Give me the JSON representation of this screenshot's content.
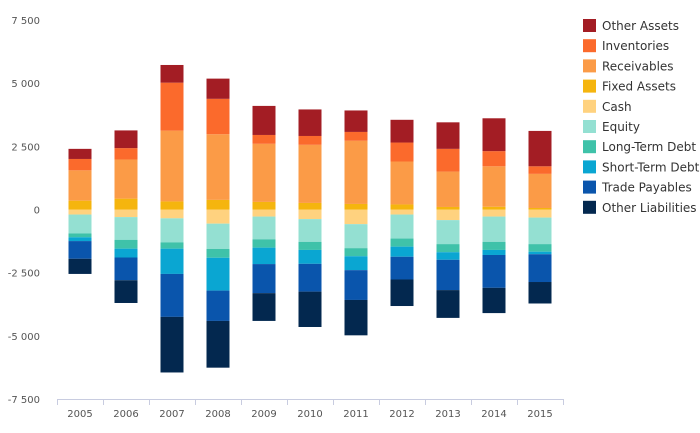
{
  "chart_data": {
    "type": "bar",
    "stacked": true,
    "title": "",
    "xlabel": "",
    "ylabel": "",
    "categories": [
      "2005",
      "2006",
      "2007",
      "2008",
      "2009",
      "2010",
      "2011",
      "2012",
      "2013",
      "2014",
      "2015"
    ],
    "ylim": [
      -7500,
      7500
    ],
    "yticks": [
      -7500,
      -5000,
      -2500,
      0,
      2500,
      5000,
      7500
    ],
    "ytick_labels": [
      "-7 500",
      "-5 000",
      "-2 500",
      "0",
      "2 500",
      "5 000",
      "7 500"
    ],
    "grid": false,
    "legend_position": "right",
    "positive_series": [
      {
        "name": "Fixed Assets",
        "color": "#f5b50e",
        "values": [
          350,
          430,
          320,
          380,
          300,
          260,
          220,
          200,
          100,
          110,
          60
        ]
      },
      {
        "name": "Receivables",
        "color": "#fb9b47",
        "values": [
          1200,
          1550,
          2800,
          2600,
          2300,
          2300,
          2500,
          1700,
          1400,
          1600,
          1350
        ]
      },
      {
        "name": "Inventories",
        "color": "#fb6a2c",
        "values": [
          450,
          450,
          1900,
          1400,
          350,
          350,
          350,
          750,
          900,
          600,
          300
        ]
      },
      {
        "name": "Other Assets",
        "color": "#a31d24",
        "values": [
          400,
          700,
          700,
          800,
          1150,
          1050,
          850,
          900,
          1050,
          1300,
          1400
        ]
      }
    ],
    "negative_series": [
      {
        "name": "Cash",
        "color": "#ffd27f",
        "values": [
          200,
          300,
          350,
          560,
          280,
          380,
          580,
          200,
          420,
          280,
          320
        ]
      },
      {
        "name": "Equity",
        "color": "#94e0d2",
        "values": [
          -750,
          -900,
          -950,
          -1000,
          -900,
          -900,
          -950,
          -950,
          -950,
          -1000,
          -1050
        ]
      },
      {
        "name": "Long-Term Debt",
        "color": "#3fc2a9",
        "values": [
          -150,
          -350,
          -250,
          -350,
          -330,
          -320,
          -320,
          -320,
          -320,
          -320,
          -300
        ]
      },
      {
        "name": "Short-Term Debt",
        "color": "#0aa6d2",
        "values": [
          -150,
          -350,
          -1000,
          -1300,
          -650,
          -550,
          -550,
          -400,
          -300,
          -200,
          -100
        ]
      },
      {
        "name": "Trade Payables",
        "color": "#0a55ac",
        "values": [
          -700,
          -900,
          -1700,
          -1200,
          -1150,
          -1100,
          -1180,
          -900,
          -1200,
          -1300,
          -1100
        ]
      },
      {
        "name": "Other Liabilities",
        "color": "#03284f",
        "values": [
          -600,
          -900,
          -2200,
          -1850,
          -1100,
          -1400,
          -1400,
          -1050,
          -1100,
          -1000,
          -850
        ]
      }
    ],
    "legend_order": [
      "Other Assets",
      "Inventories",
      "Receivables",
      "Fixed Assets",
      "Cash",
      "Equity",
      "Long-Term Debt",
      "Short-Term Debt",
      "Trade Payables",
      "Other Liabilities"
    ]
  }
}
